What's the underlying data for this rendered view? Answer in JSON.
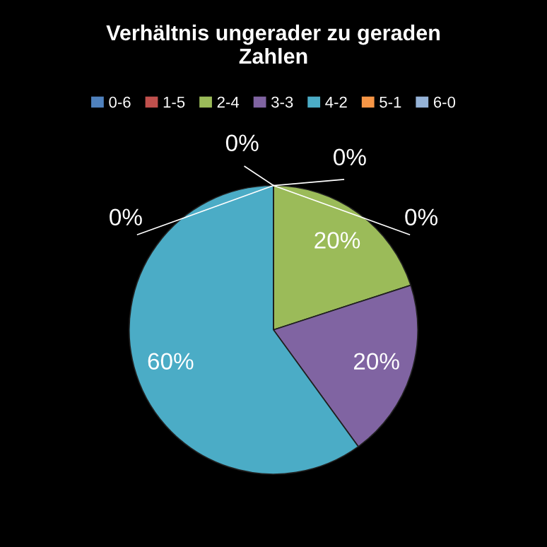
{
  "chart_data": {
    "type": "pie",
    "title": "Verhältnis ungerader zu geraden\nZahlen",
    "categories": [
      "0-6",
      "1-5",
      "2-4",
      "3-3",
      "4-2",
      "5-1",
      "6-0"
    ],
    "values": [
      0,
      0,
      20,
      20,
      60,
      0,
      0
    ],
    "colors": [
      "#4f81bd",
      "#c0504d",
      "#9bbb59",
      "#8064a2",
      "#4bacc6",
      "#f79646",
      "#95b3d7"
    ],
    "value_labels": [
      "0%",
      "0%",
      "20%",
      "20%",
      "60%",
      "0%",
      "0%"
    ],
    "legend": "top"
  }
}
